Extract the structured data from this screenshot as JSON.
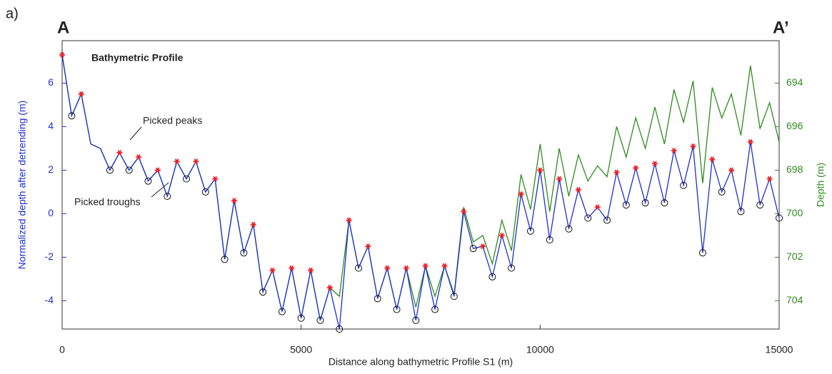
{
  "panel_label": "a)",
  "left_end_label": "A",
  "right_end_label": "A’",
  "chart_data": {
    "type": "line",
    "title": "Bathymetric Profile",
    "x_label": "Distance along bathymetric Profile S1 (m)",
    "y_label": "Normalized depth after detrending (m)",
    "y2_label": "Depth (m)",
    "annotations": [
      "Picked peaks",
      "Picked troughs"
    ],
    "xlim": [
      0,
      15000
    ],
    "xticks": [
      0,
      5000,
      10000,
      15000
    ],
    "ylim": [
      -5.3,
      7.95
    ],
    "yticks": [
      -4,
      -2,
      0,
      2,
      4,
      6
    ],
    "y2lim": [
      705.3,
      692.05
    ],
    "y2ticks": [
      694,
      696,
      698,
      700,
      702,
      704
    ],
    "peak_color": "#e8202a",
    "trough_color": "#111111",
    "x": [
      0,
      200,
      400,
      600,
      800,
      1000,
      1200,
      1400,
      1600,
      1800,
      2000,
      2200,
      2400,
      2600,
      2800,
      3000,
      3200,
      3400,
      3600,
      3800,
      4000,
      4200,
      4400,
      4600,
      4800,
      5000,
      5200,
      5400,
      5600,
      5800,
      6000,
      6200,
      6400,
      6600,
      6800,
      7000,
      7200,
      7400,
      7600,
      7800,
      8000,
      8200,
      8400,
      8600,
      8800,
      9000,
      9200,
      9400,
      9600,
      9800,
      10000,
      10200,
      10400,
      10600,
      10800,
      11000,
      11200,
      11400,
      11600,
      11800,
      12000,
      12200,
      12400,
      12600,
      12800,
      13000,
      13200,
      13400,
      13600,
      13800,
      14000,
      14200,
      14400,
      14600,
      14800,
      15000
    ],
    "series": [
      {
        "color": "#1f2fd0",
        "values": [
          7.3,
          4.5,
          5.5,
          3.2,
          3.0,
          2.0,
          2.8,
          2.0,
          2.6,
          1.5,
          2.0,
          0.8,
          2.4,
          1.6,
          2.4,
          1.0,
          1.6,
          -2.1,
          0.6,
          -1.8,
          -0.5,
          -3.6,
          -2.6,
          -4.5,
          -2.5,
          -4.8,
          -2.6,
          -4.9,
          -3.4,
          -5.3,
          -0.3,
          -2.5,
          -1.5,
          -3.9,
          -2.5,
          -4.4,
          -2.5,
          -4.9,
          -2.4,
          -4.4,
          -2.4,
          -3.8,
          0.1,
          -1.6,
          -1.5,
          -2.9,
          -1.0,
          -2.5,
          0.9,
          -0.8,
          2.0,
          -1.2,
          1.6,
          -0.7,
          1.1,
          -0.2,
          0.3,
          -0.3,
          1.9,
          0.4,
          2.1,
          0.5,
          2.3,
          0.5,
          2.9,
          1.3,
          3.1,
          -1.8,
          2.5,
          1.0,
          2.0,
          0.1,
          3.3,
          0.4,
          1.6,
          -0.2
        ]
      },
      {
        "color": "#2e8b1e",
        "axis": "y2",
        "values": [
          692.7,
          695.5,
          694.5,
          696.8,
          697.0,
          698.0,
          697.2,
          698.0,
          697.4,
          698.5,
          698.0,
          699.2,
          697.6,
          698.4,
          697.6,
          699.0,
          698.4,
          702.1,
          699.4,
          701.8,
          700.5,
          703.6,
          702.6,
          704.5,
          702.5,
          704.8,
          702.6,
          704.9,
          703.4,
          703.8,
          700.3,
          702.5,
          701.5,
          703.9,
          702.5,
          704.4,
          702.5,
          704.3,
          702.4,
          703.8,
          702.4,
          703.7,
          699.7,
          701.3,
          701.0,
          702.3,
          700.3,
          701.7,
          698.2,
          699.8,
          696.8,
          699.9,
          697.0,
          699.2,
          697.3,
          698.5,
          697.8,
          698.3,
          696.0,
          697.4,
          695.6,
          697.0,
          695.1,
          696.8,
          694.3,
          695.8,
          693.9,
          698.6,
          694.2,
          695.6,
          694.5,
          696.4,
          693.2,
          696.1,
          694.9,
          696.7
        ]
      }
    ]
  }
}
